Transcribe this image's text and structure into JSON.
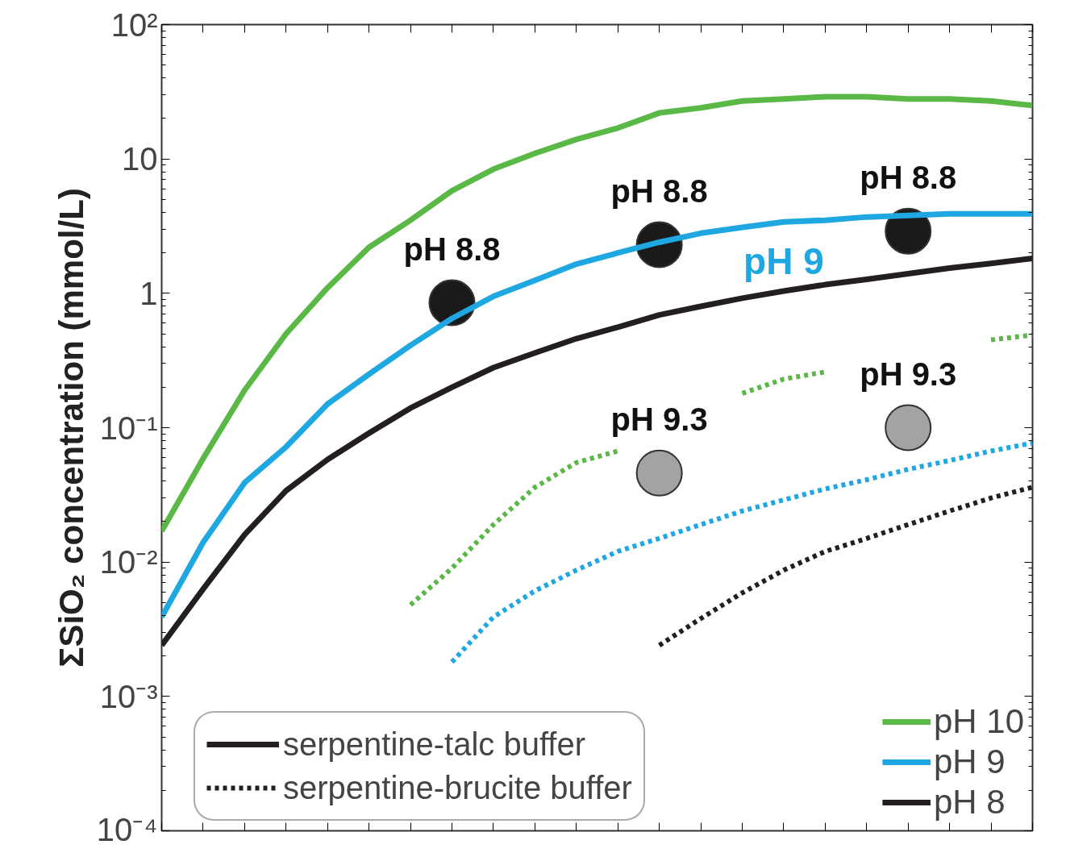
{
  "chart_data": {
    "type": "line",
    "ylabel": "ΣSiO₂ concentration (mmol/L)",
    "categories": [
      null,
      null,
      null,
      null,
      null,
      null,
      null,
      null,
      null,
      null,
      null,
      null,
      null,
      null,
      null,
      null,
      null,
      null,
      null,
      null,
      null,
      null
    ],
    "series": [
      {
        "name": "pH 10",
        "color": "#5ab946",
        "line_style": "solid",
        "values": [
          0.017,
          0.059,
          0.19,
          0.5,
          1.1,
          2.2,
          3.5,
          5.8,
          8.4,
          11,
          14,
          17,
          22,
          24,
          27,
          28,
          29,
          29,
          28,
          28,
          27,
          25
        ]
      },
      {
        "name": "pH 9",
        "color": "#1ea7e1",
        "line_style": "solid",
        "values": [
          0.0039,
          0.014,
          0.039,
          0.072,
          0.15,
          0.25,
          0.41,
          0.65,
          0.95,
          1.25,
          1.65,
          2.0,
          2.4,
          2.8,
          3.1,
          3.4,
          3.5,
          3.7,
          3.8,
          3.9,
          3.9,
          3.9
        ]
      },
      {
        "name": "pH 8",
        "color": "#231f20",
        "line_style": "solid",
        "values": [
          0.0024,
          0.0063,
          0.016,
          0.034,
          0.058,
          0.091,
          0.14,
          0.2,
          0.28,
          0.36,
          0.46,
          0.56,
          0.69,
          0.8,
          0.92,
          1.04,
          1.16,
          1.27,
          1.4,
          1.54,
          1.67,
          1.82
        ]
      },
      {
        "color": "#5ab946",
        "line_style": "dotted",
        "values": [
          null,
          null,
          null,
          null,
          null,
          null,
          0.0048,
          0.009,
          0.019,
          0.036,
          0.055,
          0.067,
          null,
          null,
          0.18,
          0.23,
          0.26,
          null,
          null,
          null,
          0.45,
          0.49
        ]
      },
      {
        "color": "#1ea7e1",
        "line_style": "dotted",
        "values": [
          null,
          null,
          null,
          null,
          null,
          null,
          null,
          0.0018,
          0.0039,
          0.0061,
          0.0087,
          0.012,
          0.015,
          0.019,
          0.024,
          0.029,
          0.035,
          0.041,
          0.049,
          0.057,
          0.067,
          0.077
        ]
      },
      {
        "color": "#231f20",
        "line_style": "dotted",
        "values": [
          null,
          null,
          null,
          null,
          null,
          null,
          null,
          null,
          null,
          null,
          null,
          null,
          0.0024,
          0.0038,
          0.0059,
          0.0087,
          0.012,
          0.015,
          0.019,
          0.024,
          0.03,
          0.036
        ]
      },
      {
        "type": "scatter",
        "color": "#1a1a1a",
        "marker": "circle",
        "values": [
          null,
          null,
          null,
          null,
          null,
          null,
          null,
          0.85,
          null,
          null,
          null,
          null,
          2.3,
          null,
          null,
          null,
          null,
          null,
          2.9,
          null,
          null,
          null
        ]
      },
      {
        "type": "scatter",
        "color": "#a3a3a3",
        "marker": "circle",
        "values": [
          null,
          null,
          null,
          null,
          null,
          null,
          null,
          null,
          null,
          null,
          null,
          null,
          0.046,
          null,
          null,
          null,
          null,
          null,
          0.1,
          null,
          null,
          null
        ]
      }
    ],
    "annotations": [
      "pH 8.8",
      "pH 8.8",
      "pH 8.8",
      "pH 9.3",
      "pH 9.3",
      "pH 9",
      "serpentine-talc buffer",
      "serpentine-brucite buffer"
    ],
    "log": "y",
    "ylim": [
      0.0001,
      100
    ],
    "yticks": [
      {
        "value": 0.0001,
        "label": "10⁻⁴"
      },
      {
        "value": 0.001,
        "label": "10⁻³"
      },
      {
        "value": 0.01,
        "label": "10⁻²"
      },
      {
        "value": 0.1,
        "label": "10⁻¹"
      },
      {
        "value": 1,
        "label": "1"
      },
      10,
      {
        "value": 100,
        "label": "10²"
      }
    ],
    "tick_labels": "y",
    "grid": false,
    "legend": "bottom right"
  }
}
